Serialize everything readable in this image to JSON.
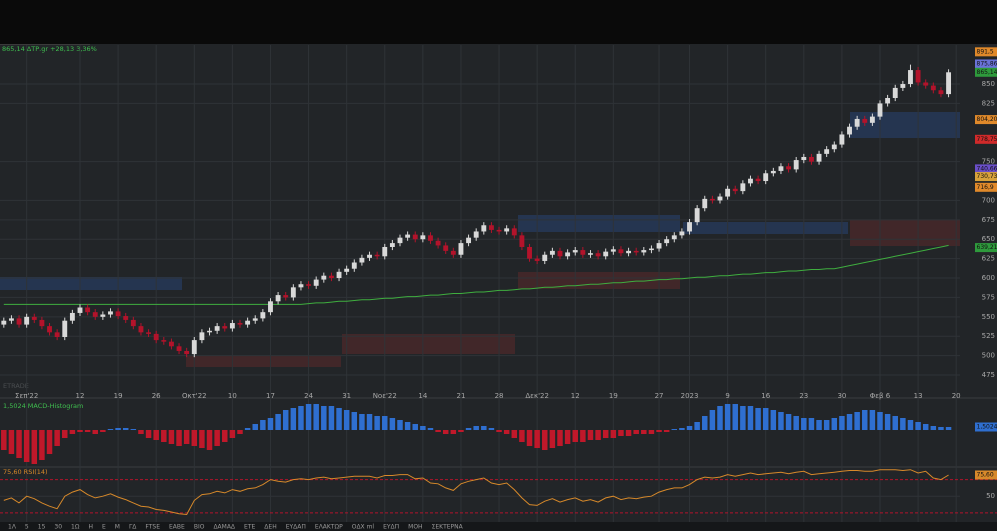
{
  "header": {
    "quote": "865,14 ΔΤΡ.gr +28,13 3,36%"
  },
  "watermark": "ETRADE",
  "chart_data": [
    {
      "type": "candlestick",
      "categories": [
        null,
        null,
        null,
        "Σεπ'22",
        null,
        null,
        null,
        null,
        null,
        null,
        "12",
        null,
        null,
        null,
        null,
        "19",
        null,
        null,
        null,
        null,
        "26",
        null,
        null,
        null,
        null,
        "Οκτ'22",
        null,
        null,
        null,
        null,
        "10",
        null,
        null,
        null,
        null,
        "17",
        null,
        null,
        null,
        null,
        "24",
        null,
        null,
        null,
        null,
        "31",
        null,
        null,
        null,
        null,
        "Νοε'22",
        null,
        null,
        null,
        null,
        "14",
        null,
        null,
        null,
        null,
        "21",
        null,
        null,
        null,
        null,
        "28",
        null,
        null,
        null,
        null,
        "Δεκ'22",
        null,
        null,
        null,
        null,
        "12",
        null,
        null,
        null,
        null,
        "19",
        null,
        null,
        null,
        null,
        null,
        "27",
        null,
        null,
        null,
        "2023",
        null,
        null,
        null,
        null,
        "9",
        null,
        null,
        null,
        null,
        "16",
        null,
        null,
        null,
        null,
        "23",
        null,
        null,
        null,
        null,
        "30",
        null,
        null,
        null,
        null,
        "Φεβ 6",
        null,
        null,
        null,
        null,
        "13",
        null,
        null,
        null,
        null,
        "20"
      ],
      "open": [
        540,
        545,
        548,
        540,
        550,
        546,
        538,
        530,
        524,
        545,
        555,
        562,
        556,
        550,
        553,
        557,
        551,
        546,
        538,
        530,
        528,
        520,
        518,
        512,
        506,
        502,
        520,
        530,
        532,
        538,
        535,
        542,
        540,
        545,
        548,
        556,
        570,
        578,
        575,
        588,
        592,
        590,
        598,
        603,
        600,
        608,
        612,
        620,
        626,
        630,
        628,
        640,
        645,
        652,
        656,
        650,
        655,
        648,
        642,
        635,
        630,
        645,
        652,
        660,
        668,
        662,
        660,
        664,
        655,
        640,
        625,
        622,
        630,
        635,
        628,
        633,
        636,
        630,
        632,
        628,
        634,
        637,
        632,
        635,
        633,
        636,
        638,
        645,
        650,
        655,
        660,
        672,
        690,
        702,
        700,
        705,
        715,
        712,
        722,
        728,
        725,
        735,
        738,
        744,
        740,
        752,
        756,
        750,
        760,
        766,
        772,
        785,
        795,
        805,
        800,
        808,
        825,
        832,
        845,
        850,
        868,
        852,
        848,
        842,
        837.01,
        null
      ],
      "high": [
        549,
        552,
        552,
        554,
        554,
        550,
        542,
        534,
        549,
        559,
        566,
        566,
        560,
        557,
        561,
        561,
        555,
        550,
        542,
        534,
        532,
        524,
        522,
        516,
        510,
        524,
        534,
        536,
        542,
        542,
        546,
        546,
        549,
        552,
        560,
        574,
        582,
        582,
        592,
        596,
        596,
        602,
        607,
        607,
        612,
        616,
        624,
        630,
        634,
        634,
        644,
        649,
        656,
        660,
        660,
        659,
        659,
        652,
        646,
        639,
        649,
        656,
        664,
        672,
        672,
        666,
        668,
        668,
        659,
        644,
        629,
        634,
        639,
        639,
        637,
        640,
        640,
        636,
        636,
        638,
        641,
        641,
        639,
        639,
        640,
        642,
        649,
        654,
        659,
        664,
        676,
        694,
        706,
        706,
        709,
        719,
        719,
        726,
        732,
        732,
        739,
        742,
        748,
        748,
        756,
        760,
        760,
        764,
        770,
        776,
        789,
        799,
        809,
        809,
        812,
        829,
        836,
        849,
        854,
        875,
        872,
        856,
        852,
        846,
        869,
        null
      ],
      "low": [
        536,
        541,
        536,
        536,
        542,
        534,
        526,
        520,
        520,
        541,
        551,
        552,
        546,
        546,
        549,
        547,
        542,
        534,
        526,
        524,
        516,
        514,
        508,
        502,
        498,
        498,
        516,
        526,
        528,
        531,
        531,
        536,
        536,
        541,
        544,
        552,
        566,
        571,
        571,
        584,
        586,
        586,
        594,
        596,
        596,
        604,
        608,
        616,
        622,
        624,
        624,
        636,
        641,
        648,
        646,
        646,
        644,
        638,
        631,
        626,
        626,
        641,
        648,
        656,
        658,
        656,
        656,
        651,
        636,
        621,
        618,
        618,
        626,
        624,
        624,
        629,
        626,
        626,
        624,
        624,
        630,
        628,
        628,
        629,
        629,
        632,
        634,
        641,
        646,
        651,
        656,
        668,
        686,
        696,
        696,
        701,
        708,
        708,
        718,
        721,
        721,
        731,
        734,
        736,
        736,
        748,
        746,
        746,
        756,
        762,
        768,
        781,
        791,
        796,
        796,
        804,
        821,
        828,
        841,
        846,
        848,
        844,
        838,
        833,
        833,
        null
      ],
      "close": [
        545,
        548,
        540,
        550,
        546,
        538,
        530,
        524,
        545,
        555,
        562,
        556,
        550,
        553,
        557,
        551,
        546,
        538,
        530,
        528,
        520,
        518,
        512,
        506,
        502,
        520,
        530,
        532,
        538,
        535,
        542,
        540,
        545,
        548,
        556,
        570,
        578,
        575,
        588,
        592,
        590,
        598,
        603,
        600,
        608,
        612,
        620,
        626,
        630,
        628,
        640,
        645,
        652,
        656,
        650,
        655,
        648,
        642,
        635,
        630,
        645,
        652,
        660,
        668,
        662,
        660,
        664,
        655,
        640,
        625,
        622,
        630,
        635,
        628,
        633,
        636,
        630,
        632,
        628,
        634,
        637,
        632,
        635,
        633,
        636,
        638,
        645,
        650,
        655,
        660,
        672,
        690,
        702,
        700,
        705,
        715,
        712,
        722,
        728,
        725,
        735,
        738,
        744,
        740,
        752,
        756,
        750,
        760,
        766,
        772,
        785,
        795,
        805,
        800,
        808,
        825,
        832,
        845,
        850,
        868,
        852,
        848,
        842,
        837.01,
        865.14,
        null
      ],
      "up_color": "#d9d9d9",
      "down_color": "#b3132b",
      "series": [
        {
          "color": "#3fae3f",
          "values": [
            566,
            566,
            566,
            566,
            566,
            566,
            566,
            566,
            566,
            566,
            566,
            566,
            566,
            566,
            566,
            566,
            566,
            566,
            566,
            566,
            566,
            566,
            566,
            566,
            566,
            566,
            566,
            566,
            566,
            566,
            566,
            566,
            566,
            566,
            566,
            566,
            566,
            566,
            566,
            566,
            567,
            568,
            568,
            569,
            570,
            570,
            571,
            572,
            572,
            573,
            574,
            574,
            575,
            576,
            576,
            577,
            578,
            578,
            579,
            580,
            580,
            581,
            582,
            582,
            583,
            584,
            584,
            585,
            586,
            586,
            587,
            588,
            588,
            589,
            590,
            590,
            591,
            592,
            592,
            593,
            594,
            594,
            595,
            596,
            596,
            597,
            598,
            598,
            599,
            599,
            600,
            601,
            601,
            602,
            603,
            603,
            604,
            605,
            605,
            606,
            607,
            607,
            608,
            609,
            609,
            610,
            611,
            611,
            612,
            612,
            614,
            616,
            618,
            620,
            622,
            624,
            626,
            628,
            630,
            632,
            634,
            636,
            638,
            640,
            642,
            null
          ]
        }
      ],
      "ylim": [
        455.7,
        900.3
      ],
      "yticks": [
        475,
        500,
        525,
        550,
        575,
        600,
        625,
        650,
        675,
        700,
        750,
        825,
        850
      ],
      "grid": true,
      "price_tags": [
        {
          "value": 891.5,
          "label": "891,5",
          "color": "#e0892a"
        },
        {
          "value": 875.86,
          "label": "875,86",
          "color": "#6a73d8"
        },
        {
          "value": 865.14,
          "label": "865,14",
          "color": "#2e9a3c"
        },
        {
          "value": 804.2,
          "label": "804,20",
          "color": "#e0892a"
        },
        {
          "value": 778.75,
          "label": "778,75",
          "color": "#d02a2a"
        },
        {
          "value": 740.66,
          "label": "740,66",
          "color": "#6a4fc8"
        },
        {
          "value": 730.73,
          "label": "730,73",
          "color": "#d8a23a"
        },
        {
          "value": 716.9,
          "label": "716,9",
          "color": "#e0892a"
        },
        {
          "value": 639.21,
          "label": "639,21",
          "color": "#2e9a3c"
        }
      ]
    },
    {
      "type": "bar",
      "label": "1,5024 MACD-Histogram",
      "values": [
        -10,
        -12,
        -14,
        -16,
        -17,
        -15,
        -12,
        -8,
        -4,
        -2,
        -1,
        -1,
        -2,
        -1,
        0.5,
        1,
        1,
        0.5,
        -2,
        -4,
        -5,
        -6,
        -7,
        -8,
        -7,
        -8,
        -9,
        -10,
        -8,
        -6,
        -4,
        -2,
        1,
        3,
        5,
        6,
        8,
        10,
        11,
        12,
        13,
        13,
        12,
        12,
        11,
        10,
        9,
        8,
        8,
        7,
        7,
        6,
        5,
        4,
        3,
        2,
        1,
        -1,
        -2,
        -2,
        -1,
        1,
        2,
        2,
        1,
        -1,
        -2,
        -4,
        -6,
        -8,
        -9,
        -10,
        -9,
        -8,
        -7,
        -6,
        -6,
        -5,
        -5,
        -4,
        -4,
        -3,
        -3,
        -2,
        -2,
        -2,
        -1,
        -1,
        0.5,
        1,
        2,
        4,
        7,
        10,
        12,
        13,
        13,
        12,
        12,
        11,
        11,
        10,
        9,
        8,
        7,
        6,
        6,
        5,
        5,
        6,
        7,
        8,
        9,
        10,
        10,
        9,
        8,
        7,
        6,
        5,
        4,
        3,
        2,
        1.5,
        1.5024,
        null
      ],
      "up_color": "#2f6fd0",
      "down_color": "#c0182a",
      "ylim": [
        -17.5,
        15
      ],
      "last_tag": {
        "value": 1.5024,
        "label": "1,5024",
        "color": "#2f6fd0"
      }
    },
    {
      "type": "line",
      "label": "75,60 RSI(14)",
      "values": [
        45,
        48,
        42,
        50,
        47,
        42,
        38,
        35,
        50,
        55,
        58,
        52,
        48,
        50,
        53,
        49,
        46,
        42,
        38,
        37,
        34,
        33,
        31,
        29,
        28,
        45,
        52,
        53,
        56,
        54,
        58,
        56,
        59,
        60,
        64,
        70,
        68,
        67,
        70,
        71,
        70,
        72,
        73,
        71,
        72,
        73,
        74,
        74,
        74,
        72,
        75,
        75,
        76,
        76,
        71,
        72,
        66,
        65,
        60,
        57,
        65,
        68,
        70,
        72,
        66,
        64,
        66,
        58,
        48,
        40,
        39,
        44,
        47,
        43,
        46,
        48,
        44,
        46,
        43,
        48,
        50,
        46,
        48,
        47,
        49,
        50,
        55,
        58,
        60,
        60,
        64,
        70,
        73,
        72,
        73,
        76,
        74,
        76,
        78,
        76,
        77,
        78,
        79,
        77,
        79,
        80,
        76,
        77,
        78,
        79,
        80,
        81,
        81,
        80,
        80,
        82,
        82,
        82,
        81,
        82,
        78,
        80,
        72,
        70,
        75.6,
        null
      ],
      "color": "#d7892a",
      "ylim": [
        19,
        84
      ],
      "yticks": [
        50
      ],
      "hlines": [
        70,
        30
      ],
      "last_tag": {
        "value": 75.6,
        "label": "75,60",
        "color": "#d7892a"
      }
    }
  ],
  "toolbar": {
    "items": [
      "1Λ",
      "5",
      "15",
      "30",
      "1Ω",
      "Η",
      "Ε",
      "Μ",
      "ΓΔ",
      "FTSE",
      "ΕΑΒΕ",
      "ΒΙΟ",
      "ΔΑΜΑΔ",
      "ΕΤΕ",
      "ΔΕΗ",
      "ΕΥΔΑΠ",
      "ΕΛΑΚΤΩΡ",
      "ΟΔΧ ml",
      "ΕΥΔΠ",
      "ΜΟΗ",
      "ΣΕΚΤΕΡΝΑ"
    ]
  }
}
